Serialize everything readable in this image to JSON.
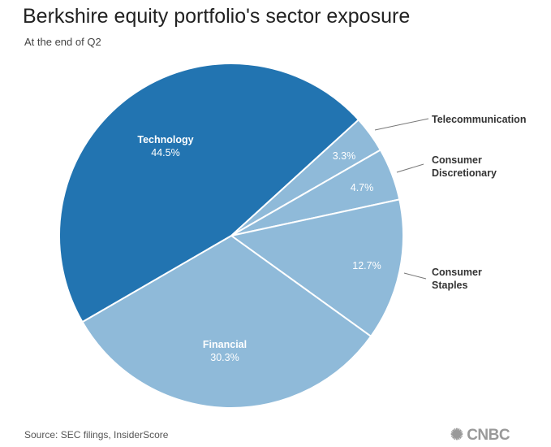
{
  "title": "Berkshire equity portfolio's sector exposure",
  "subtitle": "At the end of Q2",
  "source": "Source: SEC filings, InsiderScore",
  "logo": "CNBC",
  "chart_data": {
    "type": "pie",
    "title": "Berkshire equity portfolio's sector exposure",
    "subtitle": "At the end of Q2",
    "slices": [
      {
        "name": "Telecommunication",
        "value": 3.3,
        "label": "3.3%",
        "color": "#8fbad9"
      },
      {
        "name": "Consumer Discretionary",
        "value": 4.7,
        "label": "4.7%",
        "color": "#8fbad9"
      },
      {
        "name": "Consumer Staples",
        "value": 12.7,
        "label": "12.7%",
        "color": "#8fbad9"
      },
      {
        "name": "Financial",
        "value": 30.3,
        "label": "30.3%",
        "color": "#8fbad9"
      },
      {
        "name": "Technology",
        "value": 44.5,
        "label": "44.5%",
        "color": "#2274b1"
      }
    ],
    "external_labels": {
      "telecom": "Telecommunication",
      "disc_1": "Consumer",
      "disc_2": "Discretionary",
      "staples_1": "Consumer",
      "staples_2": "Staples"
    }
  }
}
